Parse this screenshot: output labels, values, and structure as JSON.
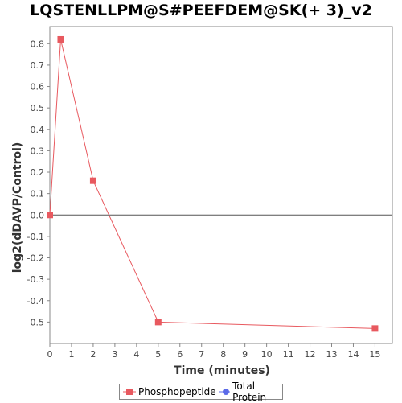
{
  "chart_data": {
    "type": "line",
    "title": "LQSTENLLPM@S#PEEFDEM@SK(+ 3)_v2",
    "xlabel": "Time (minutes)",
    "ylabel": "log2(dDAVP/Control)",
    "xlim": [
      0,
      15.8
    ],
    "ylim": [
      -0.6,
      0.88
    ],
    "x_ticks": [
      0,
      1,
      2,
      3,
      4,
      5,
      6,
      7,
      8,
      9,
      10,
      11,
      12,
      13,
      14,
      15
    ],
    "y_ticks": [
      -0.5,
      -0.4,
      -0.3,
      -0.2,
      -0.1,
      0.0,
      0.1,
      0.2,
      0.3,
      0.4,
      0.5,
      0.6,
      0.7,
      0.8
    ],
    "y_tick_labels": [
      "-0.5",
      "-0.4",
      "-0.3",
      "-0.2",
      "-0.1",
      "0.0",
      "0.1",
      "0.2",
      "0.3",
      "0.4",
      "0.5",
      "0.6",
      "0.7",
      "0.8"
    ],
    "zero_line": true,
    "grid": false,
    "legend_position": "bottom",
    "series": [
      {
        "name": "Phosphopeptide",
        "color": "#e8595f",
        "marker": "square",
        "x": [
          0,
          0.5,
          2,
          5,
          15
        ],
        "y": [
          0.0,
          0.82,
          0.16,
          -0.5,
          -0.53
        ]
      },
      {
        "name": "Total Protein",
        "color": "#5b6ae8",
        "marker": "circle",
        "x": [],
        "y": []
      }
    ]
  }
}
